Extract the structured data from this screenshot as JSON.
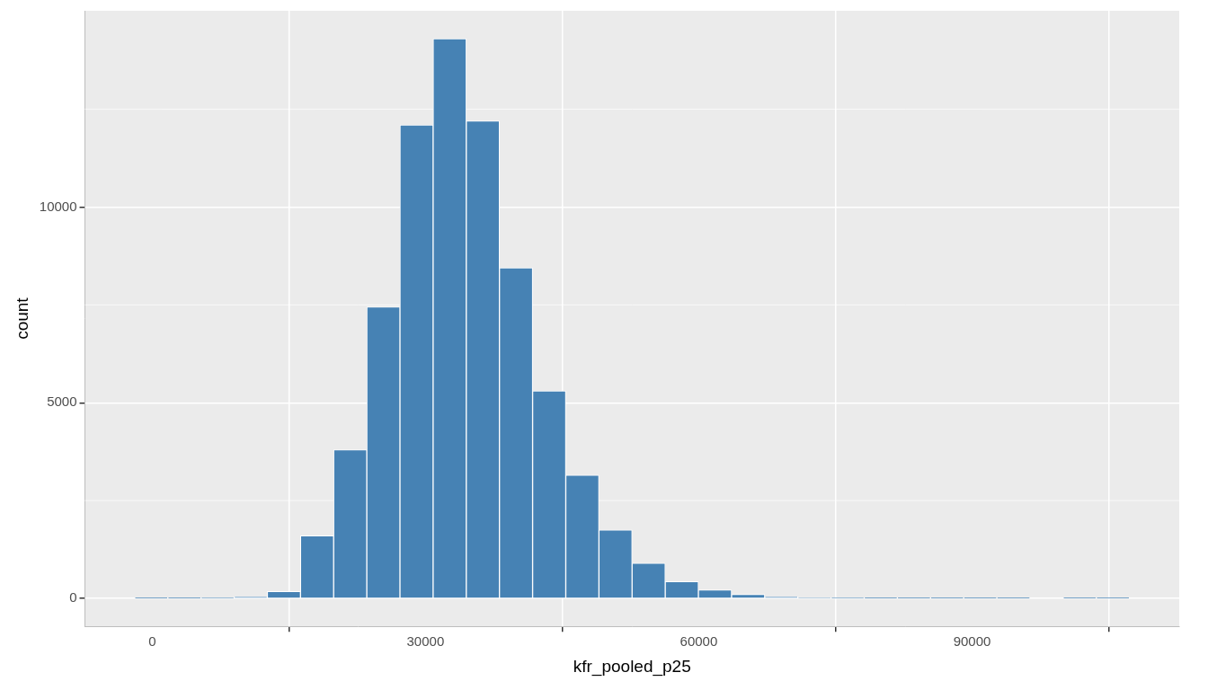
{
  "chart_data": {
    "type": "histogram",
    "x_label": "kfr_pooled_p25",
    "y_label": "count",
    "bins": [
      -1920,
      1720,
      5360,
      9000,
      12640,
      16280,
      19920,
      23560,
      27200,
      30840,
      34480,
      38120,
      41760,
      45400,
      49040,
      52680,
      56320,
      59960,
      63600,
      67240,
      70880,
      74520,
      78160,
      81800,
      85440,
      89080,
      92720,
      96360,
      100000,
      103640,
      107280
    ],
    "counts": [
      1,
      2,
      10,
      40,
      180,
      1600,
      3800,
      7450,
      12100,
      14300,
      12200,
      8450,
      5300,
      3150,
      1750,
      900,
      430,
      220,
      100,
      40,
      15,
      8,
      4,
      3,
      2,
      1,
      1,
      0,
      1,
      1
    ],
    "color": "#4682b4",
    "xlim": [
      -7380,
      112740
    ],
    "xticks": [
      0,
      30000,
      60000,
      90000
    ],
    "ylim": [
      -715,
      15015
    ],
    "yticks": [
      0,
      5000,
      10000
    ],
    "grid": true
  }
}
